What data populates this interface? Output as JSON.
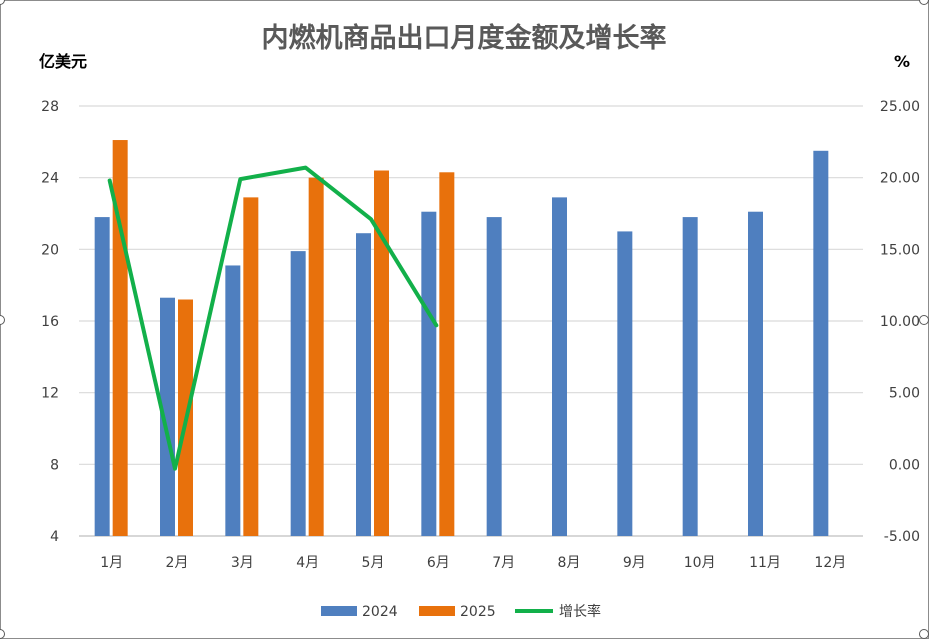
{
  "chart_data": {
    "type": "bar",
    "title": "内燃机商品出口月度金额及增长率",
    "ylabel": "亿美元",
    "y2label": "%",
    "categories": [
      "1月",
      "2月",
      "3月",
      "4月",
      "5月",
      "6月",
      "7月",
      "8月",
      "9月",
      "10月",
      "11月",
      "12月"
    ],
    "ylim": [
      4,
      28
    ],
    "yticks": [
      "4",
      "8",
      "12",
      "16",
      "20",
      "24",
      "28"
    ],
    "y2lim": [
      -5,
      25
    ],
    "y2ticks": [
      "-5.00",
      "0.00",
      "5.00",
      "10.00",
      "15.00",
      "20.00",
      "25.00"
    ],
    "grid": true,
    "legend_position": "bottom",
    "series": [
      {
        "name": "2024",
        "type": "bar",
        "color": "#4f7fbf",
        "values": [
          21.8,
          17.3,
          19.1,
          19.9,
          20.9,
          22.1,
          21.8,
          22.9,
          21.0,
          21.8,
          22.1,
          25.5
        ]
      },
      {
        "name": "2025",
        "type": "bar",
        "color": "#e8710c",
        "values": [
          26.1,
          17.2,
          22.9,
          24.0,
          24.4,
          24.3,
          null,
          null,
          null,
          null,
          null,
          null
        ]
      },
      {
        "name": "增长率",
        "type": "line",
        "axis": "right",
        "color": "#12b04a",
        "values": [
          19.8,
          -0.3,
          19.9,
          20.7,
          17.1,
          9.7,
          null,
          null,
          null,
          null,
          null,
          null
        ]
      }
    ]
  }
}
